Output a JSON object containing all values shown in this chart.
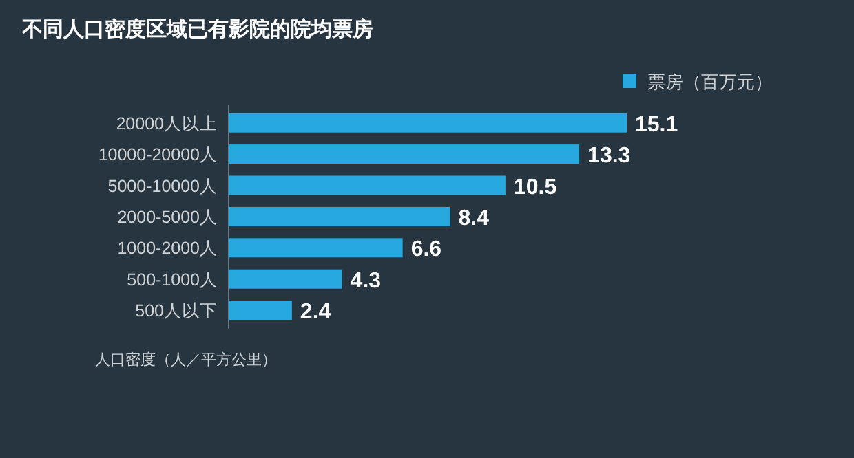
{
  "chart_data": {
    "type": "bar",
    "orientation": "horizontal",
    "title": "不同人口密度区域已有影院的院均票房",
    "ylabel": "人口密度（人／平方公里）",
    "categories": [
      "20000人以上",
      "10000-20000人",
      "5000-10000人",
      "2000-5000人",
      "1000-2000人",
      "500-1000人",
      "500人以下"
    ],
    "series": [
      {
        "name": "票房（百万元）",
        "color": "#27a9df",
        "values": [
          15.1,
          13.3,
          10.5,
          8.4,
          6.6,
          4.3,
          2.4
        ]
      }
    ],
    "data_labels": true,
    "legend": "top right",
    "grid": false
  }
}
